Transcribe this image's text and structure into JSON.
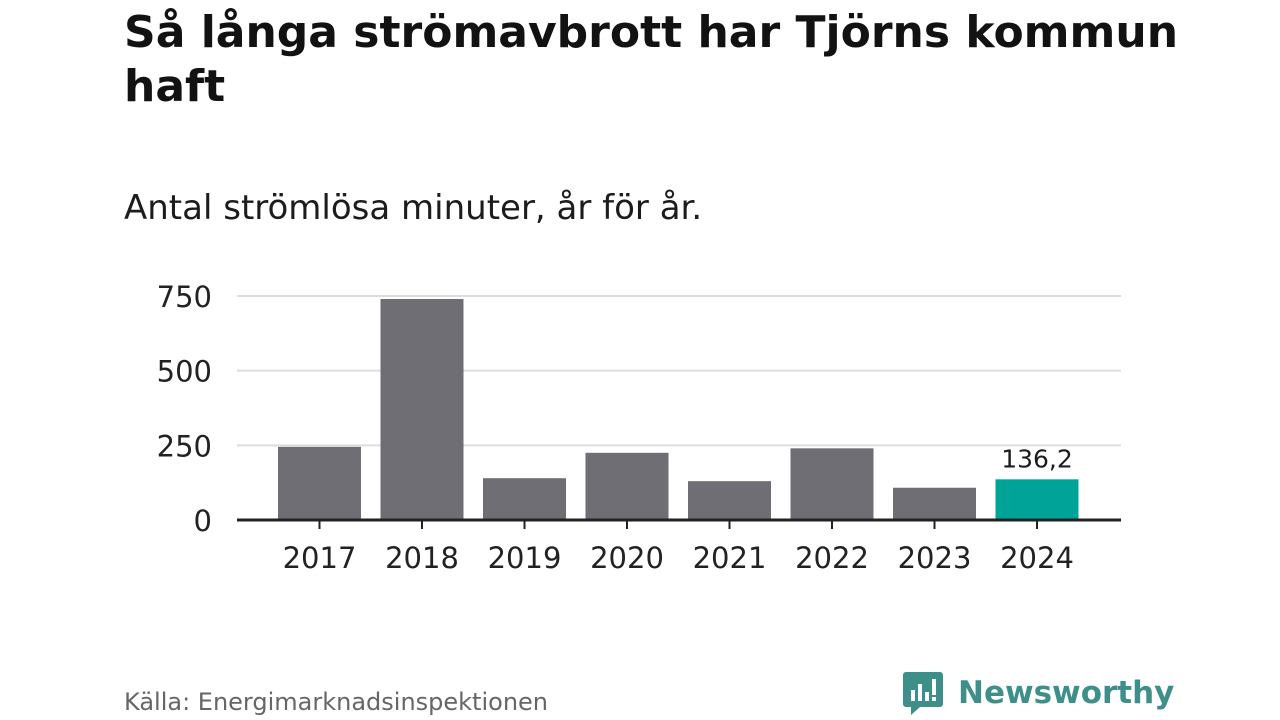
{
  "title": "Så långa strömavbrott har Tjörns kommun haft",
  "subtitle": "Antal strömlösa minuter, år för år.",
  "source": "Källa: Energimarknadsinspektionen",
  "brand": {
    "name": "Newsworthy",
    "icon": "bar-chart-speech-bubble-icon",
    "color": "#3e8f8a"
  },
  "colors": {
    "bar": "#6f6e74",
    "highlight": "#00a398",
    "grid": "#dddddd",
    "axis": "#222222"
  },
  "chart_data": {
    "type": "bar",
    "categories": [
      "2017",
      "2018",
      "2019",
      "2020",
      "2021",
      "2022",
      "2023",
      "2024"
    ],
    "values": [
      245,
      740,
      140,
      225,
      130,
      240,
      108,
      136.2
    ],
    "highlight_index": 7,
    "data_labels": [
      {
        "index": 7,
        "text": "136,2"
      }
    ],
    "yticks": [
      "0",
      "250",
      "500",
      "750"
    ],
    "ytick_values": [
      0,
      250,
      500,
      750
    ],
    "ylim": [
      0,
      750
    ],
    "grid": true,
    "xlabel": "",
    "ylabel": ""
  }
}
